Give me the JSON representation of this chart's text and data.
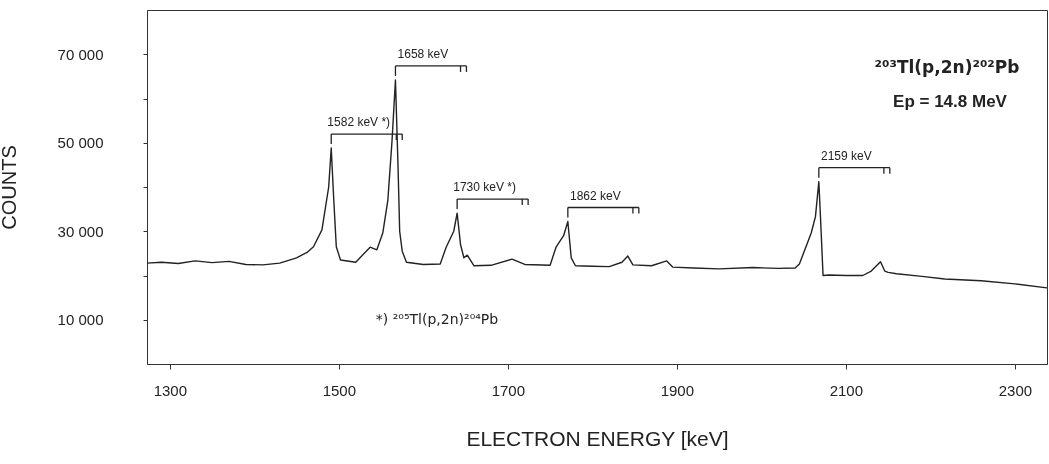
{
  "chart_data": {
    "type": "line",
    "title": "²⁰³Tl(p,2n)²⁰²Pb",
    "subtitle": "Ep = 14.8 MeV",
    "xlabel": "ELECTRON ENERGY [keV]",
    "ylabel": "COUNTS",
    "color": "#222222",
    "xlim": [
      1273,
      2338
    ],
    "xticks": [
      1300,
      1500,
      1700,
      1900,
      2100,
      2300
    ],
    "ylim": [
      0,
      80000
    ],
    "yticks": [
      {
        "value": 10000,
        "label": "10 000"
      },
      {
        "value": 20000,
        "label": null
      },
      {
        "value": 30000,
        "label": "30 000"
      },
      {
        "value": 40000,
        "label": null
      },
      {
        "value": 50000,
        "label": "50 000"
      },
      {
        "value": 60000,
        "label": null
      },
      {
        "value": 70000,
        "label": "70 000"
      }
    ],
    "x": [
      1273,
      1290,
      1310,
      1330,
      1350,
      1370,
      1390,
      1410,
      1430,
      1450,
      1463,
      1470,
      1480,
      1488,
      1491,
      1494,
      1497,
      1502,
      1520,
      1537,
      1545,
      1552,
      1558,
      1563,
      1567,
      1570,
      1572,
      1575,
      1580,
      1600,
      1620,
      1627,
      1636,
      1640,
      1644,
      1648,
      1652,
      1660,
      1680,
      1705,
      1720,
      1750,
      1757,
      1766,
      1771,
      1775,
      1780,
      1800,
      1820,
      1835,
      1842,
      1848,
      1870,
      1888,
      1895,
      1920,
      1950,
      1990,
      2020,
      2040,
      2045,
      2059,
      2064,
      2068,
      2070,
      2073,
      2080,
      2100,
      2120,
      2130,
      2141,
      2146,
      2150,
      2160,
      2190,
      2217,
      2260,
      2300,
      2338
    ],
    "values": [
      22800,
      23000,
      22700,
      23300,
      22900,
      23200,
      22500,
      22400,
      22800,
      24000,
      25300,
      26500,
      30300,
      40000,
      48800,
      37100,
      26500,
      23500,
      23000,
      26400,
      25800,
      29600,
      37000,
      50600,
      64200,
      45000,
      30000,
      25500,
      23000,
      22500,
      22600,
      26400,
      30000,
      34100,
      27000,
      24000,
      24600,
      22200,
      22300,
      23700,
      22500,
      22300,
      26400,
      29000,
      32200,
      24000,
      22200,
      22100,
      22000,
      23000,
      24400,
      22400,
      22200,
      23300,
      21900,
      21700,
      21500,
      21800,
      21600,
      21700,
      22600,
      29600,
      33300,
      41200,
      33000,
      20000,
      20100,
      20000,
      20000,
      21000,
      23100,
      21000,
      20700,
      20400,
      19800,
      19200,
      18800,
      18100,
      17200
    ],
    "annotations": [
      {
        "text": "1582 keV *)",
        "x": 1491,
        "y": 48800
      },
      {
        "text": "1658 keV",
        "x": 1567,
        "y": 64200
      },
      {
        "text": "1730 keV *)",
        "x": 1640,
        "y": 34100
      },
      {
        "text": "1862 keV",
        "x": 1771,
        "y": 32200
      },
      {
        "text": "2159 keV",
        "x": 2068,
        "y": 41200
      },
      "*)  ²⁰⁵Tl(p,2n)²⁰⁴Pb"
    ]
  }
}
